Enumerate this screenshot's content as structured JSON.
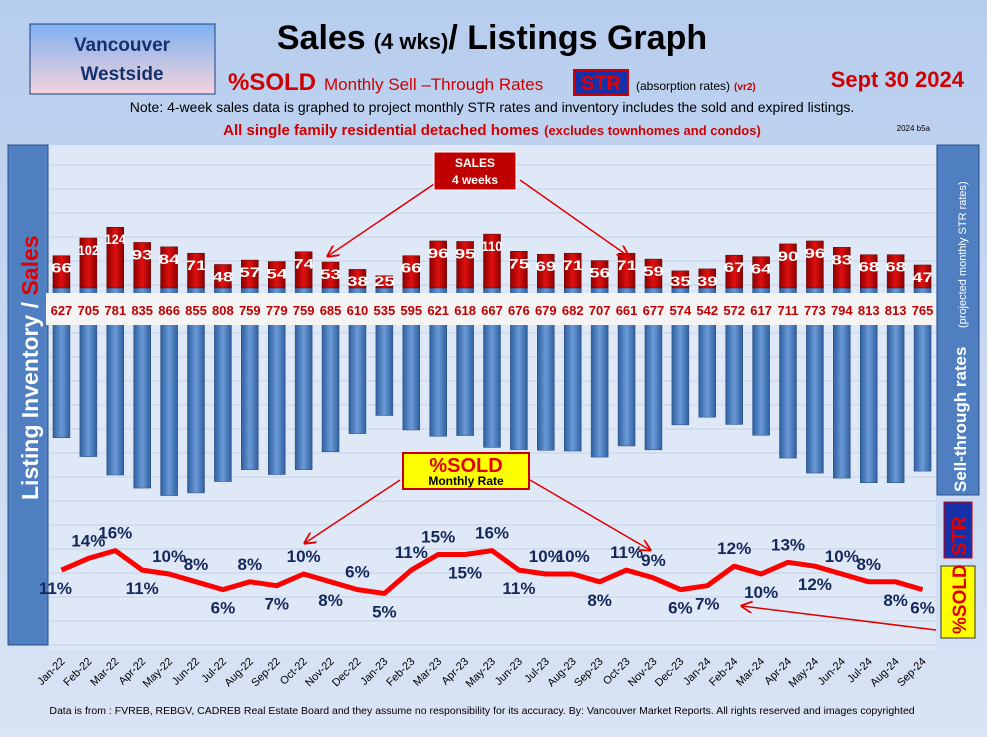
{
  "header": {
    "badge_line1": "Vancouver",
    "badge_line2": "Westside",
    "title_a": "Sales",
    "title_b": "(4 wks)",
    "title_c": "/ Listings Graph",
    "sold": "%SOLD",
    "rates": "Monthly Sell –Through Rates",
    "str": "STR",
    "absorption": "(absorption rates)",
    "version": "(vr2)",
    "date": "Sept  30  2024",
    "note": "Note: 4-week sales data is graphed to project monthly STR rates and inventory includes the sold and expired listings.",
    "scope": "All single family residential detached homes",
    "scope_note": "(excludes townhomes and condos)",
    "code": "2024 b5a"
  },
  "callouts": {
    "sales_line1": "SALES",
    "sales_line2": "4  weeks",
    "sold_line1": "%SOLD",
    "sold_line2": "Monthly Rate"
  },
  "side": {
    "left_a": "Listing Inventory / ",
    "left_b": "Sales",
    "right_a": "Sell-through rates",
    "right_b": "(projected monthly STR rates)",
    "right_str": "STR",
    "right_sold": "%SOLD"
  },
  "footer": "Data is from : FVREB, REBGV, CADREB Real Estate Board and they assume no responsibility for its accuracy. By: Vancouver Market Reports. All rights reserved and  images copyrighted",
  "chart_data": {
    "type": "combo",
    "categories": [
      "Jan-22",
      "Feb-22",
      "Mar-22",
      "Apr-22",
      "May-22",
      "Jun-22",
      "Jul-22",
      "Aug-22",
      "Sep-22",
      "Oct-22",
      "Nov-22",
      "Dec-22",
      "Jan-23",
      "Feb-23",
      "Mar-23",
      "Apr-23",
      "May-23",
      "Jun-23",
      "Jul-23",
      "Aug-23",
      "Sep-23",
      "Oct-23",
      "Nov-23",
      "Dec-23",
      "Jan-24",
      "Feb-24",
      "Mar-24",
      "Apr-24",
      "May-24",
      "Jun-24",
      "Jul-24",
      "Aug-24",
      "Sep-24"
    ],
    "series": [
      {
        "name": "Sales",
        "color": "#c00000",
        "values": [
          66,
          102,
          124,
          93,
          84,
          71,
          48,
          57,
          54,
          74,
          53,
          38,
          25,
          66,
          96,
          95,
          110,
          75,
          69,
          71,
          56,
          71,
          59,
          35,
          39,
          67,
          64,
          90,
          96,
          83,
          68,
          68,
          47
        ]
      },
      {
        "name": "Listing Inventory",
        "color": "#4f81bd",
        "values": [
          627,
          705,
          781,
          835,
          866,
          855,
          808,
          759,
          779,
          759,
          685,
          610,
          535,
          595,
          621,
          618,
          667,
          676,
          679,
          682,
          707,
          661,
          677,
          574,
          542,
          572,
          617,
          711,
          773,
          794,
          813,
          813,
          765
        ]
      },
      {
        "name": "%SOLD",
        "color": "#ff0000",
        "values": [
          11,
          14,
          16,
          11,
          10,
          8,
          6,
          8,
          7,
          10,
          8,
          6,
          5,
          11,
          15,
          15,
          16,
          11,
          10,
          10,
          8,
          11,
          9,
          6,
          7,
          12,
          10,
          13,
          12,
          10,
          8,
          8,
          6
        ],
        "value_labels": [
          "11%",
          "14%",
          "16%",
          "11%",
          "10%",
          "8%",
          "6%",
          "8%",
          "7%",
          "10%",
          "8%",
          "6%",
          "5%",
          "11%",
          "15%",
          "15%",
          "16%",
          "11%",
          "10%",
          "10%",
          "8%",
          "11%",
          "9%",
          "6%",
          "7%",
          "12%",
          "10%",
          "13%",
          "12%",
          "10%",
          "8%",
          "8%",
          "6%"
        ]
      }
    ]
  }
}
